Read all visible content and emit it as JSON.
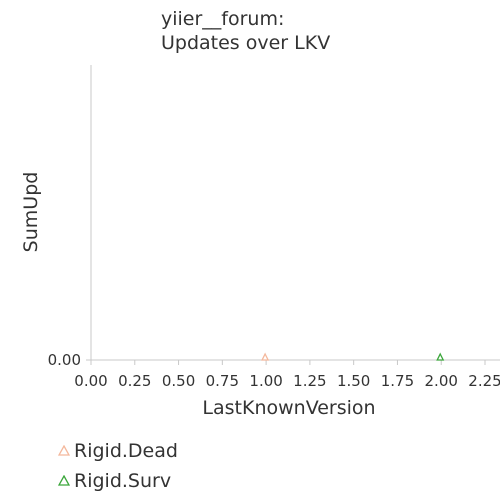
{
  "chart_data": {
    "type": "scatter",
    "title_lines": [
      "yiier__forum:",
      "Updates over LKV"
    ],
    "xlabel": "LastKnownVersion",
    "ylabel": "SumUpd",
    "xlim": [
      0,
      2.25
    ],
    "ylim": [
      0,
      1
    ],
    "x_ticks": [
      "0.00",
      "0.25",
      "0.50",
      "0.75",
      "1.00",
      "1.25",
      "1.50",
      "1.75",
      "2.00",
      "2.25"
    ],
    "y_ticks": [
      "0.00"
    ],
    "grid": false,
    "legend_position": "bottom-left",
    "series": [
      {
        "name": "Rigid.Dead",
        "marker": "triangle",
        "color": "#f4b89c",
        "points": [
          {
            "x": 1.0,
            "y": 0.0
          }
        ]
      },
      {
        "name": "Rigid.Surv",
        "marker": "triangle",
        "color": "#3aa63a",
        "points": [
          {
            "x": 2.0,
            "y": 0.0
          }
        ]
      }
    ]
  }
}
